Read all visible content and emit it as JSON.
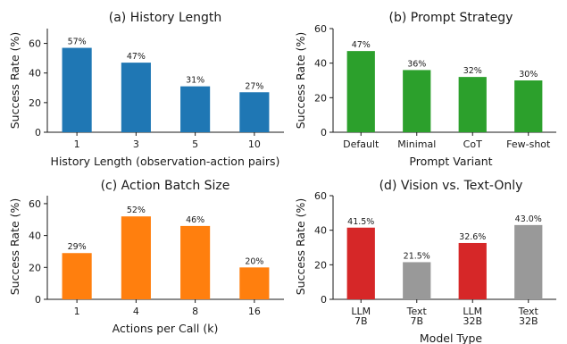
{
  "figure": {
    "panels": [
      {
        "title": "(a) History Length",
        "xlabel": "History Length (observation-action pairs)",
        "ylabel": "Success Rate (%)"
      },
      {
        "title": "(b) Prompt Strategy",
        "xlabel": "Prompt Variant",
        "ylabel": "Success Rate (%)"
      },
      {
        "title": "(c) Action Batch Size",
        "xlabel": "Actions per Call (k)",
        "ylabel": "Success Rate (%)"
      },
      {
        "title": "(d) Vision vs. Text-Only",
        "xlabel": "Model Type",
        "ylabel": "Success Rate (%)"
      }
    ]
  },
  "chart_data": [
    {
      "type": "bar",
      "title": "(a) History Length",
      "xlabel": "History Length (observation-action pairs)",
      "ylabel": "Success Rate (%)",
      "categories": [
        "1",
        "3",
        "5",
        "10"
      ],
      "values": [
        57,
        47,
        31,
        27
      ],
      "data_labels": [
        "57%",
        "47%",
        "31%",
        "27%"
      ],
      "colors": [
        "#1f77b4",
        "#1f77b4",
        "#1f77b4",
        "#1f77b4"
      ],
      "ylim": [
        0,
        70
      ],
      "yticks": [
        0,
        20,
        40,
        60
      ],
      "grid": false
    },
    {
      "type": "bar",
      "title": "(b) Prompt Strategy",
      "xlabel": "Prompt Variant",
      "ylabel": "Success Rate (%)",
      "categories": [
        "Default",
        "Minimal",
        "CoT",
        "Few-shot"
      ],
      "values": [
        47,
        36,
        32,
        30
      ],
      "data_labels": [
        "47%",
        "36%",
        "32%",
        "30%"
      ],
      "colors": [
        "#2ca02c",
        "#2ca02c",
        "#2ca02c",
        "#2ca02c"
      ],
      "ylim": [
        0,
        60
      ],
      "yticks": [
        0,
        20,
        40,
        60
      ],
      "grid": false
    },
    {
      "type": "bar",
      "title": "(c) Action Batch Size",
      "xlabel": "Actions per Call (k)",
      "ylabel": "Success Rate (%)",
      "categories": [
        "1",
        "4",
        "8",
        "16"
      ],
      "values": [
        29,
        52,
        46,
        20
      ],
      "data_labels": [
        "29%",
        "52%",
        "46%",
        "20%"
      ],
      "colors": [
        "#ff7f0e",
        "#ff7f0e",
        "#ff7f0e",
        "#ff7f0e"
      ],
      "ylim": [
        0,
        65
      ],
      "yticks": [
        0,
        20,
        40,
        60
      ],
      "grid": false
    },
    {
      "type": "bar",
      "title": "(d) Vision vs. Text-Only",
      "xlabel": "Model Type",
      "ylabel": "Success Rate (%)",
      "categories": [
        [
          "LLM",
          "7B"
        ],
        [
          "Text",
          "7B"
        ],
        [
          "LLM",
          "32B"
        ],
        [
          "Text",
          "32B"
        ]
      ],
      "values": [
        41.5,
        21.5,
        32.6,
        43.0
      ],
      "data_labels": [
        "41.5%",
        "21.5%",
        "32.6%",
        "43.0%"
      ],
      "colors": [
        "#d62728",
        "#999999",
        "#d62728",
        "#999999"
      ],
      "ylim": [
        0,
        60
      ],
      "yticks": [
        0,
        20,
        40,
        60
      ],
      "grid": false
    }
  ]
}
